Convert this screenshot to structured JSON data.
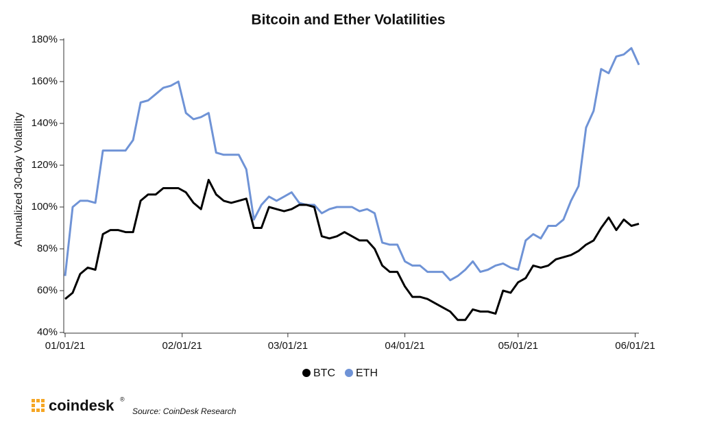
{
  "chart_data": {
    "type": "line",
    "title": "Bitcoin and Ether Volatilities",
    "y_label": "Annualized 30-day Volatility",
    "x": [
      "2021-01-01",
      "2021-01-03",
      "2021-01-05",
      "2021-01-07",
      "2021-01-09",
      "2021-01-11",
      "2021-01-13",
      "2021-01-15",
      "2021-01-17",
      "2021-01-19",
      "2021-01-21",
      "2021-01-23",
      "2021-01-25",
      "2021-01-27",
      "2021-01-29",
      "2021-01-31",
      "2021-02-02",
      "2021-02-04",
      "2021-02-06",
      "2021-02-08",
      "2021-02-10",
      "2021-02-12",
      "2021-02-14",
      "2021-02-16",
      "2021-02-18",
      "2021-02-20",
      "2021-02-22",
      "2021-02-24",
      "2021-02-26",
      "2021-02-28",
      "2021-03-02",
      "2021-03-04",
      "2021-03-06",
      "2021-03-08",
      "2021-03-10",
      "2021-03-12",
      "2021-03-14",
      "2021-03-16",
      "2021-03-18",
      "2021-03-20",
      "2021-03-22",
      "2021-03-24",
      "2021-03-26",
      "2021-03-28",
      "2021-03-30",
      "2021-04-01",
      "2021-04-03",
      "2021-04-05",
      "2021-04-07",
      "2021-04-09",
      "2021-04-11",
      "2021-04-13",
      "2021-04-15",
      "2021-04-17",
      "2021-04-19",
      "2021-04-21",
      "2021-04-23",
      "2021-04-25",
      "2021-04-27",
      "2021-04-29",
      "2021-05-01",
      "2021-05-03",
      "2021-05-05",
      "2021-05-07",
      "2021-05-09",
      "2021-05-11",
      "2021-05-13",
      "2021-05-15",
      "2021-05-17",
      "2021-05-19",
      "2021-05-21",
      "2021-05-23",
      "2021-05-25",
      "2021-05-27",
      "2021-05-29",
      "2021-05-31",
      "2021-06-02"
    ],
    "series": [
      {
        "name": "BTC",
        "color": "#000000",
        "values": [
          56,
          59,
          68,
          71,
          70,
          87,
          89,
          89,
          88,
          88,
          103,
          106,
          106,
          109,
          109,
          109,
          107,
          102,
          99,
          113,
          106,
          103,
          102,
          103,
          104,
          90,
          90,
          100,
          99,
          98,
          99,
          101,
          101,
          100,
          86,
          85,
          86,
          88,
          86,
          84,
          84,
          80,
          72,
          69,
          69,
          62,
          57,
          57,
          56,
          54,
          52,
          50,
          46,
          46,
          51,
          50,
          50,
          49,
          60,
          59,
          64,
          66,
          72,
          71,
          72,
          75,
          76,
          77,
          79,
          82,
          84,
          90,
          95,
          89,
          94,
          91,
          92
        ]
      },
      {
        "name": "ETH",
        "color": "#6f93d6",
        "values": [
          67,
          100,
          103,
          103,
          102,
          127,
          127,
          127,
          127,
          132,
          150,
          151,
          154,
          157,
          158,
          160,
          145,
          142,
          143,
          145,
          126,
          125,
          125,
          125,
          118,
          94,
          101,
          105,
          103,
          105,
          107,
          102,
          101,
          101,
          97,
          99,
          100,
          100,
          100,
          98,
          99,
          97,
          83,
          82,
          82,
          74,
          72,
          72,
          69,
          69,
          69,
          65,
          67,
          70,
          74,
          69,
          70,
          72,
          73,
          71,
          70,
          84,
          87,
          85,
          91,
          91,
          94,
          103,
          110,
          138,
          146,
          166,
          164,
          172,
          173,
          176,
          168
        ]
      }
    ],
    "xlim": [
      "2021-01-01",
      "2021-06-02"
    ],
    "xticks": [
      {
        "value": "2021-01-01",
        "label": "01/01/21"
      },
      {
        "value": "2021-02-01",
        "label": "02/01/21"
      },
      {
        "value": "2021-03-01",
        "label": "03/01/21"
      },
      {
        "value": "2021-04-01",
        "label": "04/01/21"
      },
      {
        "value": "2021-05-01",
        "label": "05/01/21"
      },
      {
        "value": "2021-06-01",
        "label": "06/01/21"
      }
    ],
    "ylim": [
      40,
      180
    ],
    "yticks": [
      {
        "value": 40,
        "label": "40%"
      },
      {
        "value": 60,
        "label": "60%"
      },
      {
        "value": 80,
        "label": "80%"
      },
      {
        "value": 100,
        "label": "100%"
      },
      {
        "value": 120,
        "label": "120%"
      },
      {
        "value": 140,
        "label": "140%"
      },
      {
        "value": 160,
        "label": "160%"
      },
      {
        "value": 180,
        "label": "180%"
      }
    ],
    "grid": false,
    "legend": "bottom"
  },
  "footer": {
    "logo": "coindesk",
    "logo_mark": "®",
    "source": "Source: CoinDesk Research"
  }
}
